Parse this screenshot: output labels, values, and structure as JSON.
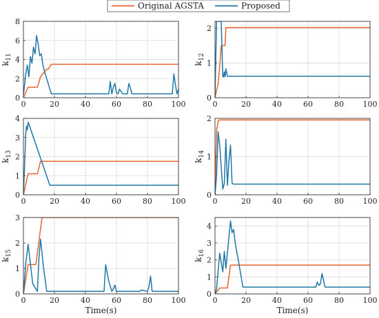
{
  "legend": {
    "series_1": "Original AGSTA",
    "series_2": "Proposed"
  },
  "colors": {
    "series_1": "#e8632d",
    "series_2": "#1f77a8",
    "axis": "#333333",
    "grid": "#d9d9d9"
  },
  "chart_data": [
    {
      "type": "line",
      "ylabel_base": "k",
      "ylabel_sub": "11",
      "xlabel": "",
      "xlim": [
        0,
        100
      ],
      "ylim": [
        0,
        8
      ],
      "xticks": [
        0,
        20,
        40,
        60,
        80,
        100
      ],
      "yticks": [
        0,
        2,
        4,
        6,
        8
      ],
      "grid": true,
      "series": [
        {
          "name": "Original AGSTA",
          "x": [
            0,
            3,
            4,
            9,
            11,
            13,
            15,
            16,
            18,
            100
          ],
          "y": [
            0,
            1.1,
            1.1,
            1.1,
            2.2,
            2.6,
            3.0,
            3.0,
            3.5,
            3.5
          ]
        },
        {
          "name": "Proposed",
          "x": [
            0,
            1.5,
            2.5,
            3.5,
            4.5,
            5.5,
            6.5,
            7.5,
            8.5,
            9.5,
            10.5,
            11.5,
            12.5,
            13.5,
            18,
            55,
            56,
            57,
            58,
            59,
            60,
            61,
            62,
            64,
            65,
            66,
            67,
            68,
            69,
            70,
            96,
            97,
            98,
            99,
            100
          ],
          "y": [
            0.3,
            2.5,
            3.4,
            2.2,
            4.3,
            3.6,
            5.3,
            4.6,
            6.5,
            5.6,
            4.4,
            4.6,
            3.5,
            2.8,
            0.4,
            0.4,
            1.7,
            0.4,
            1.1,
            1.5,
            0.5,
            0.4,
            0.9,
            0.4,
            0.4,
            0.4,
            0.4,
            1.5,
            1.0,
            0.4,
            0.4,
            2.5,
            1.4,
            0.4,
            0.9
          ]
        }
      ]
    },
    {
      "type": "line",
      "ylabel_base": "k",
      "ylabel_sub": "12",
      "xlabel": "",
      "xlim": [
        0,
        100
      ],
      "ylim": [
        0,
        2.2
      ],
      "xticks": [
        0,
        20,
        40,
        60,
        80,
        100
      ],
      "yticks": [
        0,
        1,
        2
      ],
      "grid": true,
      "series": [
        {
          "name": "Original AGSTA",
          "x": [
            0,
            2,
            3,
            4,
            5,
            6,
            6.5,
            7,
            100
          ],
          "y": [
            0,
            0.4,
            0.9,
            1.5,
            1.5,
            1.5,
            1.5,
            2.02,
            2.02
          ]
        },
        {
          "name": "Proposed",
          "x": [
            0,
            1,
            2,
            3,
            4,
            5,
            5.5,
            6,
            6.5,
            7,
            8,
            100
          ],
          "y": [
            0,
            2.2,
            2.2,
            2.2,
            2.2,
            0.6,
            0.6,
            0.75,
            0.6,
            0.83,
            0.62,
            0.62
          ]
        }
      ]
    },
    {
      "type": "line",
      "ylabel_base": "k",
      "ylabel_sub": "13",
      "xlabel": "",
      "xlim": [
        0,
        100
      ],
      "ylim": [
        0,
        4
      ],
      "xticks": [
        0,
        20,
        40,
        60,
        80,
        100
      ],
      "yticks": [
        0,
        1,
        2,
        3,
        4
      ],
      "grid": true,
      "series": [
        {
          "name": "Original AGSTA",
          "x": [
            0,
            3,
            9,
            11,
            100
          ],
          "y": [
            0,
            1.1,
            1.1,
            1.75,
            1.75
          ]
        },
        {
          "name": "Proposed",
          "x": [
            0,
            1.5,
            2,
            2.5,
            3,
            3.5,
            17,
            100
          ],
          "y": [
            0,
            3.2,
            3.6,
            3.4,
            3.8,
            3.7,
            0.5,
            0.5
          ]
        }
      ]
    },
    {
      "type": "line",
      "ylabel_base": "k",
      "ylabel_sub": "14",
      "xlabel": "",
      "xlim": [
        0,
        100
      ],
      "ylim": [
        0,
        2
      ],
      "xticks": [
        0,
        20,
        40,
        60,
        80,
        100
      ],
      "yticks": [
        0,
        1,
        2
      ],
      "grid": true,
      "series": [
        {
          "name": "Original AGSTA",
          "x": [
            0,
            1,
            1.5,
            2,
            3,
            100
          ],
          "y": [
            0,
            1.7,
            1.8,
            1.93,
            1.96,
            1.96
          ]
        },
        {
          "name": "Proposed",
          "x": [
            0,
            1,
            2,
            3,
            5,
            6,
            7,
            8,
            9,
            10,
            11,
            12,
            100
          ],
          "y": [
            0,
            0.5,
            1.65,
            1.3,
            0.15,
            0.3,
            1.45,
            0.25,
            0.9,
            1.3,
            0.3,
            0.28,
            0.28
          ]
        }
      ]
    },
    {
      "type": "line",
      "ylabel_base": "k",
      "ylabel_sub": "15",
      "xlabel": "Time(s)",
      "xlim": [
        0,
        100
      ],
      "ylim": [
        0,
        3
      ],
      "xticks": [
        0,
        20,
        40,
        60,
        80,
        100
      ],
      "yticks": [
        0,
        1,
        2,
        3
      ],
      "grid": true,
      "series": [
        {
          "name": "Original AGSTA",
          "x": [
            0,
            3,
            5,
            8,
            12,
            100
          ],
          "y": [
            0,
            1.15,
            1.15,
            1.15,
            3.0,
            3.0
          ]
        },
        {
          "name": "Proposed",
          "x": [
            0,
            1.5,
            3,
            6,
            9,
            10,
            11,
            13,
            15,
            52,
            53,
            55,
            57,
            58,
            59,
            60,
            75,
            76,
            80,
            81,
            82,
            83,
            100
          ],
          "y": [
            0,
            1.2,
            1.95,
            0.4,
            0.1,
            1.4,
            2.15,
            1.0,
            0.1,
            0.1,
            1.15,
            0.5,
            0.1,
            0.2,
            0.35,
            0.1,
            0.1,
            0.15,
            0.1,
            0.3,
            0.7,
            0.1,
            0.1
          ]
        }
      ]
    },
    {
      "type": "line",
      "ylabel_base": "k",
      "ylabel_sub": "16",
      "xlabel": "Time(s)",
      "xlim": [
        0,
        100
      ],
      "ylim": [
        0,
        4.5
      ],
      "xticks": [
        0,
        20,
        40,
        60,
        80,
        100
      ],
      "yticks": [
        0,
        1,
        2,
        3,
        4
      ],
      "grid": true,
      "series": [
        {
          "name": "Original AGSTA",
          "x": [
            0,
            3,
            8,
            10,
            100
          ],
          "y": [
            0,
            0.35,
            0.35,
            1.7,
            1.7
          ]
        },
        {
          "name": "Proposed",
          "x": [
            0,
            1,
            3,
            5,
            6,
            7,
            10,
            11,
            12,
            13,
            15,
            18,
            65,
            66,
            67,
            68,
            69,
            71,
            100
          ],
          "y": [
            0,
            0.3,
            2.4,
            1.3,
            2.5,
            1.5,
            4.3,
            3.6,
            3.8,
            3.0,
            2.0,
            0.4,
            0.4,
            0.7,
            0.5,
            0.6,
            1.2,
            0.4,
            0.4
          ]
        }
      ]
    }
  ]
}
